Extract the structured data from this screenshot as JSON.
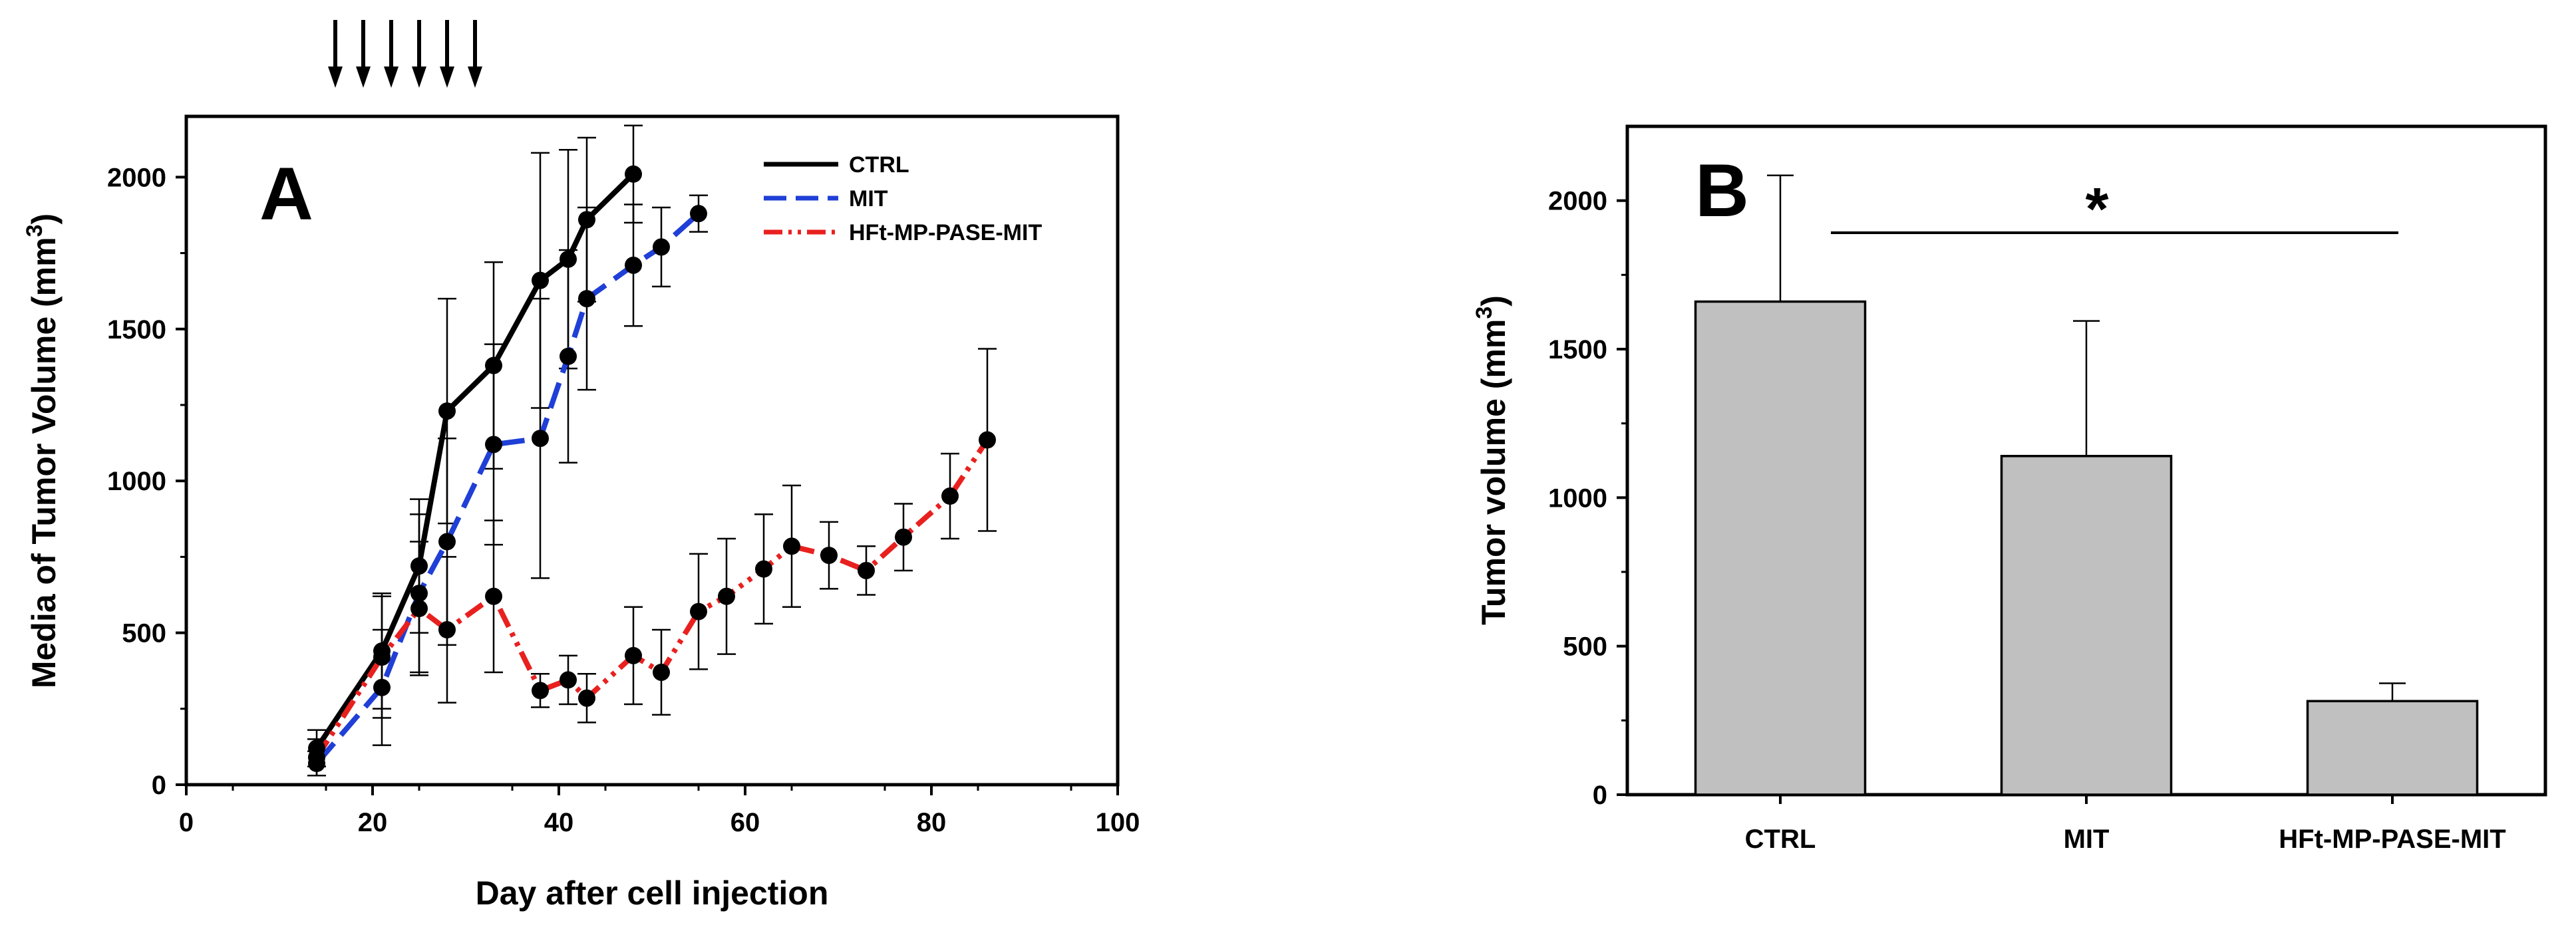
{
  "chart_data": [
    {
      "type": "line",
      "panel_label": "A",
      "xlabel": "Day after cell injection",
      "ylabel_main": "Media of Tumor Volume (mm",
      "ylabel_sup": "3",
      "ylabel_end": ")",
      "xlim": [
        0,
        100
      ],
      "ylim": [
        0,
        2200
      ],
      "xticks": [
        0,
        20,
        40,
        60,
        80,
        100
      ],
      "yticks": [
        0,
        500,
        1000,
        1500,
        2000
      ],
      "xtick_labels": [
        "0",
        "20",
        "40",
        "60",
        "80",
        "100"
      ],
      "ytick_labels": [
        "0",
        "500",
        "1000",
        "1500",
        "2000"
      ],
      "treatment_days": [
        16,
        19,
        22,
        25,
        28,
        31
      ],
      "legend": [
        "CTRL",
        "MIT",
        "HFt-MP-PASE-MIT"
      ],
      "series": [
        {
          "name": "CTRL",
          "color": "#000000",
          "dash": "solid",
          "x": [
            14,
            21,
            25,
            28,
            33,
            38,
            41,
            43,
            48
          ],
          "y": [
            120,
            440,
            720,
            1230,
            1380,
            1660,
            1730,
            1860,
            2010
          ],
          "err": [
            60,
            190,
            220,
            370,
            340,
            420,
            360,
            270,
            160
          ]
        },
        {
          "name": "MIT",
          "color": "#1f3fd6",
          "dash": "dashed",
          "x": [
            14,
            21,
            25,
            28,
            33,
            38,
            41,
            43,
            48,
            51,
            55
          ],
          "y": [
            70,
            320,
            630,
            800,
            1120,
            1140,
            1410,
            1600,
            1710,
            1770,
            1880
          ],
          "err": [
            40,
            190,
            260,
            340,
            330,
            460,
            350,
            300,
            200,
            130,
            60
          ]
        },
        {
          "name": "HFt-MP-PASE-MIT",
          "color": "#e8211f",
          "dash": "dashdotdot",
          "x": [
            14,
            21,
            25,
            28,
            33,
            38,
            41,
            43,
            48,
            51,
            55,
            58,
            62,
            65,
            69,
            73,
            77,
            82,
            86
          ],
          "y": [
            90,
            420,
            580,
            510,
            620,
            310,
            345,
            285,
            425,
            370,
            570,
            620,
            710,
            785,
            755,
            705,
            815,
            950,
            1135
          ],
          "err": [
            60,
            200,
            220,
            240,
            250,
            55,
            80,
            80,
            160,
            140,
            190,
            190,
            180,
            200,
            110,
            80,
            110,
            140,
            300
          ]
        }
      ]
    },
    {
      "type": "bar",
      "panel_label": "B",
      "ylabel_main": "Tumor volume (mm",
      "ylabel_sup": "3",
      "ylabel_end": ")",
      "categories": [
        "CTRL",
        "MIT",
        "HFt-MP-PASE-MIT"
      ],
      "values": [
        1660,
        1140,
        315
      ],
      "errors": [
        425,
        455,
        60
      ],
      "ylim": [
        0,
        2250
      ],
      "yticks": [
        0,
        500,
        1000,
        1500,
        2000
      ],
      "ytick_labels": [
        "0",
        "500",
        "1000",
        "1500",
        "2000"
      ],
      "bar_color": "#c0c0c0",
      "significance": "*"
    }
  ]
}
